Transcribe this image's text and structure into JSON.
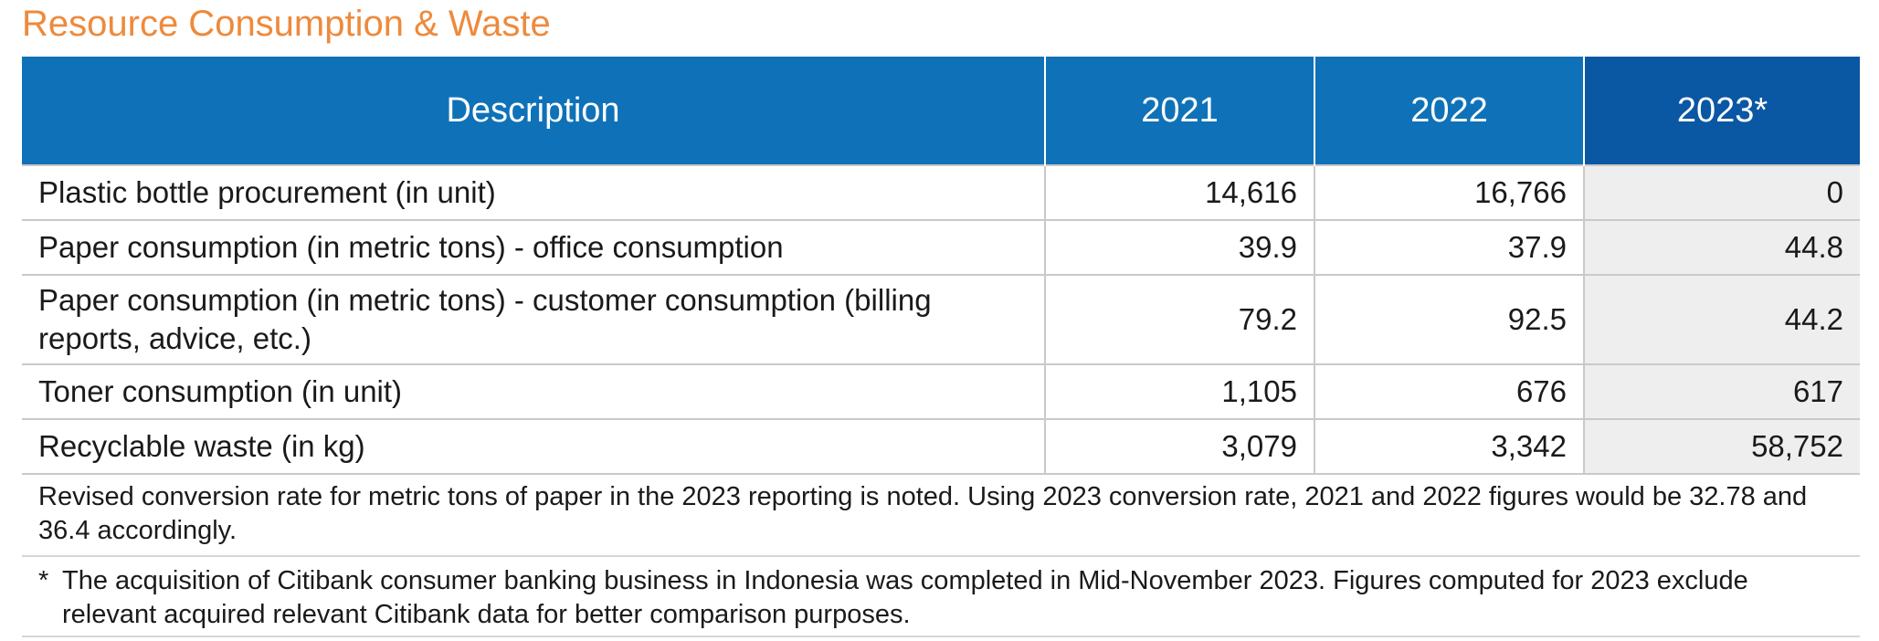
{
  "title": "Resource Consumption & Waste",
  "table": {
    "headers": [
      "Description",
      "2021",
      "2022",
      "2023*"
    ],
    "rows": [
      {
        "description": "Plastic bottle procurement (in unit)",
        "v2021": "14,616",
        "v2022": "16,766",
        "v2023": "0"
      },
      {
        "description": "Paper consumption (in metric tons) - office consumption",
        "v2021": "39.9",
        "v2022": "37.9",
        "v2023": "44.8"
      },
      {
        "description": "Paper consumption (in metric tons) - customer consumption (billing reports, advice, etc.)",
        "v2021": "79.2",
        "v2022": "92.5",
        "v2023": "44.2"
      },
      {
        "description": "Toner consumption (in unit)",
        "v2021": "1,105",
        "v2022": "676",
        "v2023": "617"
      },
      {
        "description": "Recyclable waste (in kg)",
        "v2021": "3,079",
        "v2022": "3,342",
        "v2023": "58,752"
      }
    ]
  },
  "notes": {
    "conversion_note": "Revised conversion rate for metric tons of paper in the 2023 reporting is noted. Using 2023 conversion rate, 2021 and 2022 figures would be 32.78 and 36.4 accordingly.",
    "footnote_marker": "*",
    "footnote_text": "The acquisition of Citibank consumer banking business in Indonesia was completed in Mid-November 2023. Figures computed for 2023 exclude relevant acquired relevant Citibank data for better comparison purposes."
  },
  "colors": {
    "title": "#ee8a3c",
    "header_blue": "#0f72b8",
    "header_dark_blue": "#0a57a3",
    "highlight_column": "#eeeeee",
    "grid_line": "#c9c9c9"
  }
}
